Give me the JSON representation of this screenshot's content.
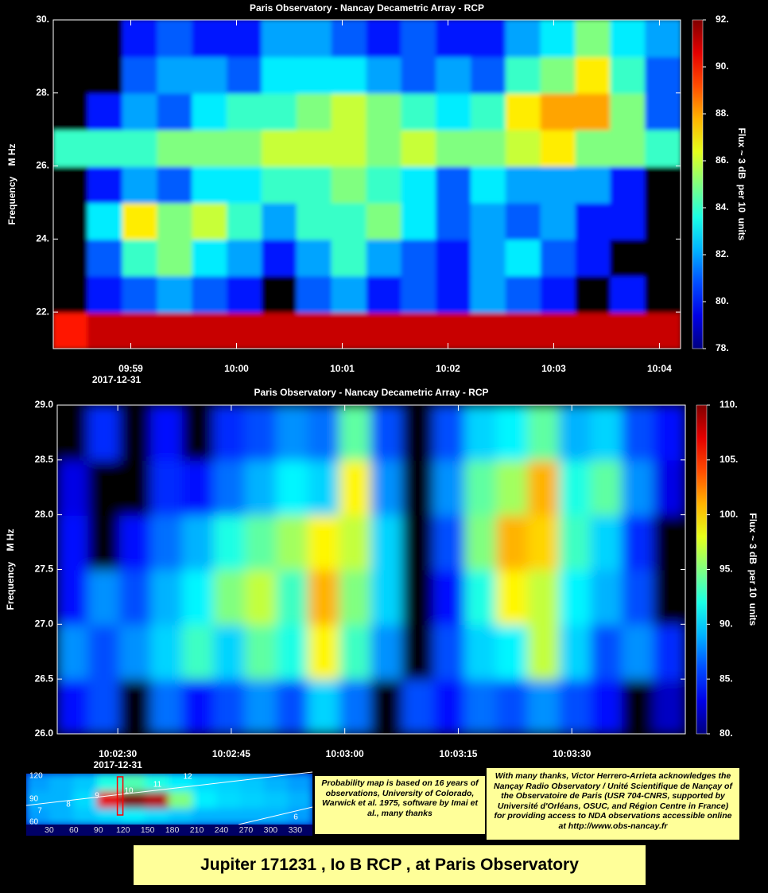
{
  "chart_data": [
    {
      "type": "heatmap",
      "title": "Paris Observatory - Nancay Decametric Array - RCP",
      "y_label": "Frequency    M Hz",
      "colorbar_label": "Flux ~ 3 dB  per 10  units",
      "xlim": [
        "09:58:16",
        "10:04:12"
      ],
      "xticks": [
        {
          "value": "09:59:00",
          "label": "09:59"
        },
        {
          "value": "10:00:00",
          "label": "10:00"
        },
        {
          "value": "10:01:00",
          "label": "10:01"
        },
        {
          "value": "10:02:00",
          "label": "10:02"
        },
        {
          "value": "10:03:00",
          "label": "10:03"
        },
        {
          "value": "10:04:00",
          "label": "10:04"
        }
      ],
      "date_label": "2017-12-31",
      "ylim": [
        21,
        30
      ],
      "yticks": [
        {
          "value": 22,
          "label": "22."
        },
        {
          "value": 24,
          "label": "24."
        },
        {
          "value": 26,
          "label": "26."
        },
        {
          "value": 28,
          "label": "28."
        },
        {
          "value": 30,
          "label": "30."
        }
      ],
      "clim": [
        78,
        92
      ],
      "cticks": [
        {
          "value": 78,
          "label": "78."
        },
        {
          "value": 80,
          "label": "80."
        },
        {
          "value": 82,
          "label": "82."
        },
        {
          "value": 84,
          "label": "84."
        },
        {
          "value": 86,
          "label": "86."
        },
        {
          "value": 88,
          "label": "88."
        },
        {
          "value": 90,
          "label": "90."
        },
        {
          "value": 92,
          "label": "92."
        }
      ],
      "z": [
        [
          90,
          91,
          91,
          91,
          91,
          91,
          91,
          91,
          91,
          91,
          91,
          91,
          91,
          91,
          91,
          91,
          91,
          91
        ],
        [
          77,
          80,
          81,
          82,
          81,
          80,
          77,
          81,
          82,
          80,
          81,
          80,
          82,
          81,
          80,
          77,
          80,
          77
        ],
        [
          77,
          81,
          84,
          85,
          83,
          82,
          80,
          82,
          84,
          82,
          81,
          80,
          82,
          83,
          81,
          80,
          77,
          77
        ],
        [
          77,
          83,
          87,
          85,
          86,
          84,
          82,
          84,
          84,
          85,
          83,
          81,
          82,
          81,
          82,
          80,
          80,
          77
        ],
        [
          77,
          80,
          82,
          81,
          83,
          83,
          84,
          84,
          85,
          84,
          83,
          81,
          83,
          82,
          82,
          82,
          80,
          77
        ],
        [
          84,
          84,
          84,
          85,
          85,
          85,
          86,
          86,
          86,
          85,
          86,
          85,
          85,
          86,
          87,
          85,
          85,
          84
        ],
        [
          77,
          80,
          82,
          81,
          83,
          84,
          84,
          85,
          86,
          85,
          84,
          83,
          84,
          87,
          88,
          88,
          85,
          81
        ],
        [
          77,
          77,
          81,
          82,
          82,
          81,
          83,
          83,
          83,
          82,
          81,
          82,
          81,
          84,
          85,
          87,
          84,
          81
        ],
        [
          77,
          77,
          80,
          81,
          80,
          80,
          82,
          82,
          81,
          80,
          81,
          80,
          80,
          82,
          83,
          85,
          83,
          82
        ]
      ]
    },
    {
      "type": "heatmap",
      "title": "Paris Observatory - Nancay Decametric Array - RCP",
      "y_label": "Frequency    M Hz",
      "colorbar_label": "Flux ~ 3 dB  per 10  units",
      "xlim": [
        "10:02:22",
        "10:03:45"
      ],
      "xticks": [
        {
          "value": "10:02:30",
          "label": "10:02:30"
        },
        {
          "value": "10:02:45",
          "label": "10:02:45"
        },
        {
          "value": "10:03:00",
          "label": "10:03:00"
        },
        {
          "value": "10:03:15",
          "label": "10:03:15"
        },
        {
          "value": "10:03:30",
          "label": "10:03:30"
        }
      ],
      "date_label": "2017-12-31",
      "ylim": [
        26,
        29
      ],
      "yticks": [
        {
          "value": 26,
          "label": "26.0"
        },
        {
          "value": 26.5,
          "label": "26.5"
        },
        {
          "value": 27,
          "label": "27.0"
        },
        {
          "value": 27.5,
          "label": "27.5"
        },
        {
          "value": 28,
          "label": "28.0"
        },
        {
          "value": 28.5,
          "label": "28.5"
        },
        {
          "value": 29,
          "label": "29.0"
        }
      ],
      "clim": [
        80,
        110
      ],
      "cticks": [
        {
          "value": 80,
          "label": "80."
        },
        {
          "value": 85,
          "label": "85."
        },
        {
          "value": 90,
          "label": "90."
        },
        {
          "value": 95,
          "label": "95."
        },
        {
          "value": 100,
          "label": "100."
        },
        {
          "value": 105,
          "label": "105."
        },
        {
          "value": 110,
          "label": "110."
        }
      ],
      "z": [
        [
          84,
          86,
          78,
          87,
          84,
          86,
          88,
          86,
          90,
          87,
          78,
          86,
          84,
          87,
          86,
          88,
          86,
          84,
          78,
          82
        ],
        [
          88,
          86,
          88,
          90,
          93,
          90,
          94,
          92,
          99,
          93,
          88,
          78,
          86,
          90,
          91,
          97,
          90,
          86,
          88,
          85
        ],
        [
          84,
          88,
          86,
          89,
          91,
          95,
          97,
          93,
          101,
          95,
          90,
          78,
          84,
          92,
          99,
          97,
          91,
          89,
          86,
          78
        ],
        [
          84,
          78,
          84,
          87,
          89,
          92,
          94,
          96,
          99,
          97,
          90,
          78,
          86,
          95,
          101,
          100,
          93,
          90,
          85,
          78
        ],
        [
          83,
          78,
          78,
          85,
          84,
          87,
          89,
          91,
          90,
          99,
          88,
          78,
          88,
          94,
          96,
          101,
          92,
          94,
          88,
          83
        ],
        [
          78,
          85,
          78,
          84,
          78,
          85,
          86,
          88,
          87,
          94,
          86,
          78,
          86,
          90,
          91,
          94,
          89,
          90,
          86,
          84
        ]
      ]
    },
    {
      "type": "heatmap",
      "xlim": [
        2,
        351
      ],
      "xticks": [
        30,
        60,
        90,
        120,
        150,
        180,
        210,
        240,
        270,
        300,
        330
      ],
      "ylim": [
        57,
        123
      ],
      "yticks": [
        60,
        90,
        120
      ],
      "line_labels": [
        "12",
        "11",
        "10",
        "9",
        "8",
        "7",
        "6"
      ],
      "marker_x": 116,
      "z": [
        [
          0.28,
          0.3,
          0.32,
          0.34,
          0.36,
          0.34,
          0.32,
          0.3,
          0.3,
          0.3,
          0.3,
          0.28
        ],
        [
          0.3,
          0.3,
          0.34,
          0.9,
          1,
          0.95,
          0.5,
          0.36,
          0.34,
          0.33,
          0.32,
          0.3
        ],
        [
          0.28,
          0.3,
          0.32,
          0.4,
          0.45,
          0.4,
          0.36,
          0.34,
          0.33,
          0.32,
          0.3,
          0.28
        ]
      ]
    }
  ],
  "notes": [
    "Probability map is based on 16 years of observations, University of Colorado, Warwick et al. 1975, software by Imai et al., many thanks",
    "With many thanks, Victor Herrero-Arrieta acknowledges the Nançay Radio Observatory / Unité Scientifique de Nançay of the Observatoire de Paris (USR 704-CNRS, supported by Université d'Orléans, OSUC, and Région Centre in France) for providing access to NDA observations accessible online at http://www.obs-nancay.fr"
  ],
  "footer_title": "Jupiter 171231 , Io B RCP , at Paris Observatory"
}
